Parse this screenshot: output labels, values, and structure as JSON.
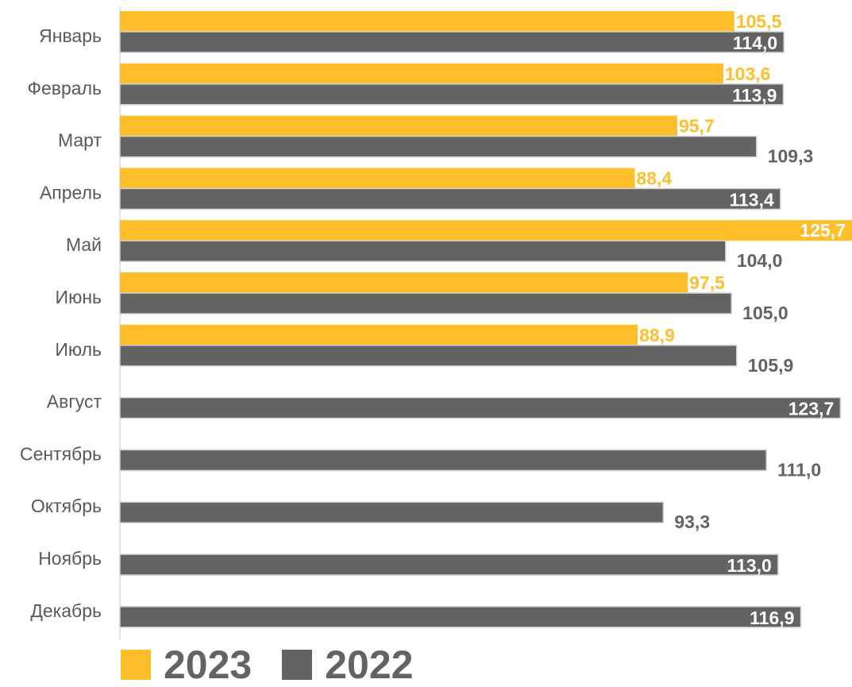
{
  "colors": {
    "series_2023": "#FFBF2A",
    "series_2022": "#636363",
    "axis_line": "#D9D9D9",
    "category_text": "#595959",
    "label_on_bar": "#FFFFFF"
  },
  "chart_data": {
    "type": "bar",
    "orientation": "horizontal",
    "categories": [
      "Январь",
      "Февраль",
      "Март",
      "Апрель",
      "Май",
      "Июнь",
      "Июль",
      "Август",
      "Сентябрь",
      "Октябрь",
      "Ноябрь",
      "Декабрь"
    ],
    "series": [
      {
        "name": "2023",
        "values": [
          105.5,
          103.6,
          95.7,
          88.4,
          125.7,
          97.5,
          88.9,
          null,
          null,
          null,
          null,
          null
        ],
        "labels": [
          "105,5",
          "103,6",
          "95,7",
          "88,4",
          "125,7",
          "97,5",
          "88,9",
          "",
          "",
          "",
          "",
          ""
        ]
      },
      {
        "name": "2022",
        "values": [
          114.0,
          113.9,
          109.3,
          113.4,
          104.0,
          105.0,
          105.9,
          123.7,
          111.0,
          93.3,
          113.0,
          116.9
        ],
        "labels": [
          "114,0",
          "113,9",
          "109,3",
          "113,4",
          "104,0",
          "105,0",
          "105,9",
          "123,7",
          "111,0",
          "93,3",
          "113,0",
          "116,9"
        ]
      }
    ],
    "xlim": [
      0,
      125.7
    ],
    "grid": false,
    "legend": "bottom-left"
  }
}
